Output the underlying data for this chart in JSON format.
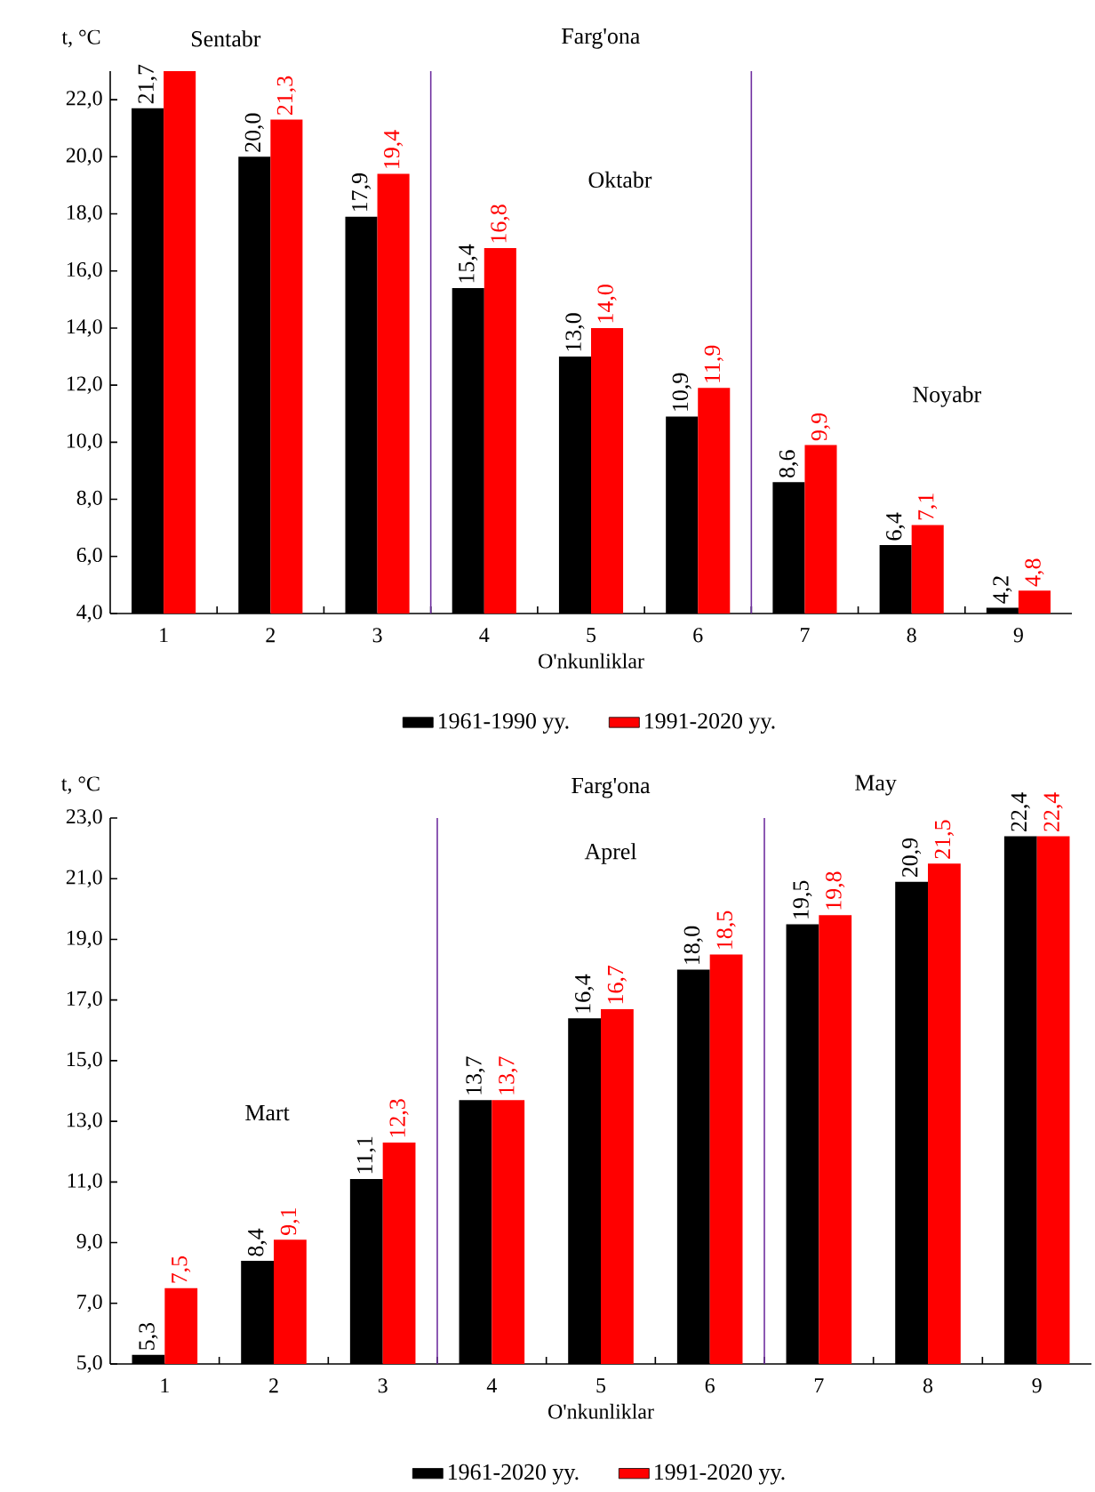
{
  "chart_data": [
    {
      "type": "bar",
      "ylabel": "t, °C",
      "xlabel": "O'nkunliklar",
      "x": [
        1,
        2,
        3,
        4,
        5,
        6,
        7,
        8,
        9
      ],
      "xlim": [
        0.5,
        9.5
      ],
      "xticks": [
        1,
        2,
        3,
        4,
        5,
        6,
        7,
        8,
        9
      ],
      "ylim": [
        4,
        23
      ],
      "yticks": [
        {
          "value": 4,
          "label": "4,0"
        },
        {
          "value": 6,
          "label": "6,0"
        },
        {
          "value": 8,
          "label": "8,0"
        },
        {
          "value": 10,
          "label": "10,0"
        },
        {
          "value": 12,
          "label": "12,0"
        },
        {
          "value": 14,
          "label": "14,0"
        },
        {
          "value": 16,
          "label": "16,0"
        },
        {
          "value": 18,
          "label": "18,0"
        },
        {
          "value": 20,
          "label": "20,0"
        },
        {
          "value": 22,
          "label": "22,0"
        }
      ],
      "series": [
        {
          "name": "1961-1990 yy.",
          "color": "#000000",
          "values": [
            21.7,
            20.0,
            17.9,
            15.4,
            13.0,
            10.9,
            8.6,
            6.4,
            4.2
          ],
          "value_labels": [
            "21,7",
            "20,0",
            "17,9",
            "15,4",
            "13,0",
            "10,9",
            "8,6",
            "6,4",
            "4,2"
          ]
        },
        {
          "name": "1991-2020 yy.",
          "color": "#ff0000",
          "values": [
            23.0,
            21.3,
            19.4,
            16.8,
            14.0,
            11.9,
            9.9,
            7.1,
            4.8
          ],
          "value_labels": [
            null,
            "21,3",
            "19,4",
            "16,8",
            "14,0",
            "11,9",
            "9,9",
            "7,1",
            "4,8"
          ]
        }
      ],
      "ref_lines": [
        {
          "axis": "x",
          "value": 3.5,
          "color": "#7030a0"
        },
        {
          "axis": "x",
          "value": 6.5,
          "color": "#7030a0"
        }
      ],
      "annotations": [
        "Sentabr",
        "Farg'ona",
        "Oktabr",
        "Noyabr"
      ],
      "legend": "bottom"
    },
    {
      "type": "bar",
      "ylabel": "t, °C",
      "xlabel": "O'nkunliklar",
      "x": [
        1,
        2,
        3,
        4,
        5,
        6,
        7,
        8,
        9
      ],
      "xlim": [
        0.5,
        9.5
      ],
      "xticks": [
        1,
        2,
        3,
        4,
        5,
        6,
        7,
        8,
        9
      ],
      "ylim": [
        5,
        23
      ],
      "yticks": [
        {
          "value": 5,
          "label": "5,0"
        },
        {
          "value": 7,
          "label": "7,0"
        },
        {
          "value": 9,
          "label": "9,0"
        },
        {
          "value": 11,
          "label": "11,0"
        },
        {
          "value": 13,
          "label": "13,0"
        },
        {
          "value": 15,
          "label": "15,0"
        },
        {
          "value": 17,
          "label": "17,0"
        },
        {
          "value": 19,
          "label": "19,0"
        },
        {
          "value": 21,
          "label": "21,0"
        },
        {
          "value": 23,
          "label": "23,0"
        }
      ],
      "series": [
        {
          "name": "1961-2020 yy.",
          "color": "#000000",
          "values": [
            5.3,
            8.4,
            11.1,
            13.7,
            16.4,
            18.0,
            19.5,
            20.9,
            22.4
          ],
          "value_labels": [
            "5,3",
            "8,4",
            "11,1",
            "13,7",
            "16,4",
            "18,0",
            "19,5",
            "20,9",
            "22,4"
          ]
        },
        {
          "name": "1991-2020 yy.",
          "color": "#ff0000",
          "values": [
            7.5,
            9.1,
            12.3,
            13.7,
            16.7,
            18.5,
            19.8,
            21.5,
            22.4
          ],
          "value_labels": [
            "7,5",
            "9,1",
            "12,3",
            "13,7",
            "16,7",
            "18,5",
            "19,8",
            "21,5",
            "22,4"
          ]
        }
      ],
      "ref_lines": [
        {
          "axis": "x",
          "value": 3.5,
          "color": "#7030a0"
        },
        {
          "axis": "x",
          "value": 6.5,
          "color": "#7030a0"
        }
      ],
      "annotations": [
        "Farg'ona",
        "May",
        "Aprel",
        "Mart"
      ],
      "legend": "bottom"
    }
  ]
}
